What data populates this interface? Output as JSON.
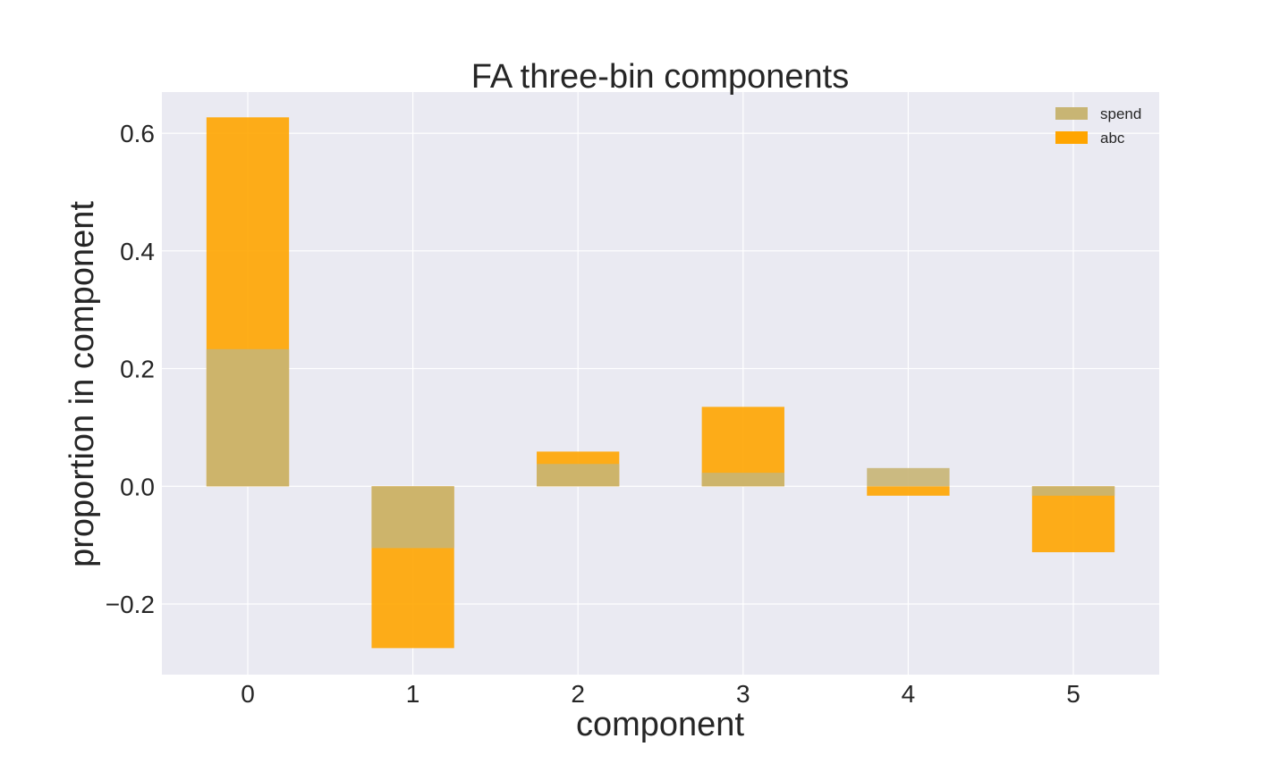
{
  "chart_data": {
    "type": "bar",
    "title": "FA three-bin components",
    "xlabel": "component",
    "ylabel": "proportion in component",
    "categories": [
      "0",
      "1",
      "2",
      "3",
      "4",
      "5"
    ],
    "x_values": [
      0,
      1,
      2,
      3,
      4,
      5
    ],
    "xlim": [
      -0.52,
      5.52
    ],
    "ylim": [
      -0.32,
      0.67
    ],
    "y_ticks": [
      -0.2,
      0.0,
      0.2,
      0.4,
      0.6
    ],
    "y_tick_labels": [
      "−0.2",
      "0.0",
      "0.2",
      "0.4",
      "0.6"
    ],
    "grid": true,
    "legend_position": "upper-right",
    "overlay": true,
    "series": [
      {
        "name": "spend",
        "color": "#c8b574",
        "values": [
          0.233,
          -0.105,
          0.038,
          0.023,
          0.031,
          -0.016
        ]
      },
      {
        "name": "abc",
        "color": "#ffa500",
        "values": [
          0.627,
          -0.275,
          0.059,
          0.135,
          -0.016,
          -0.112
        ]
      }
    ],
    "draw_order": [
      1,
      0
    ]
  }
}
